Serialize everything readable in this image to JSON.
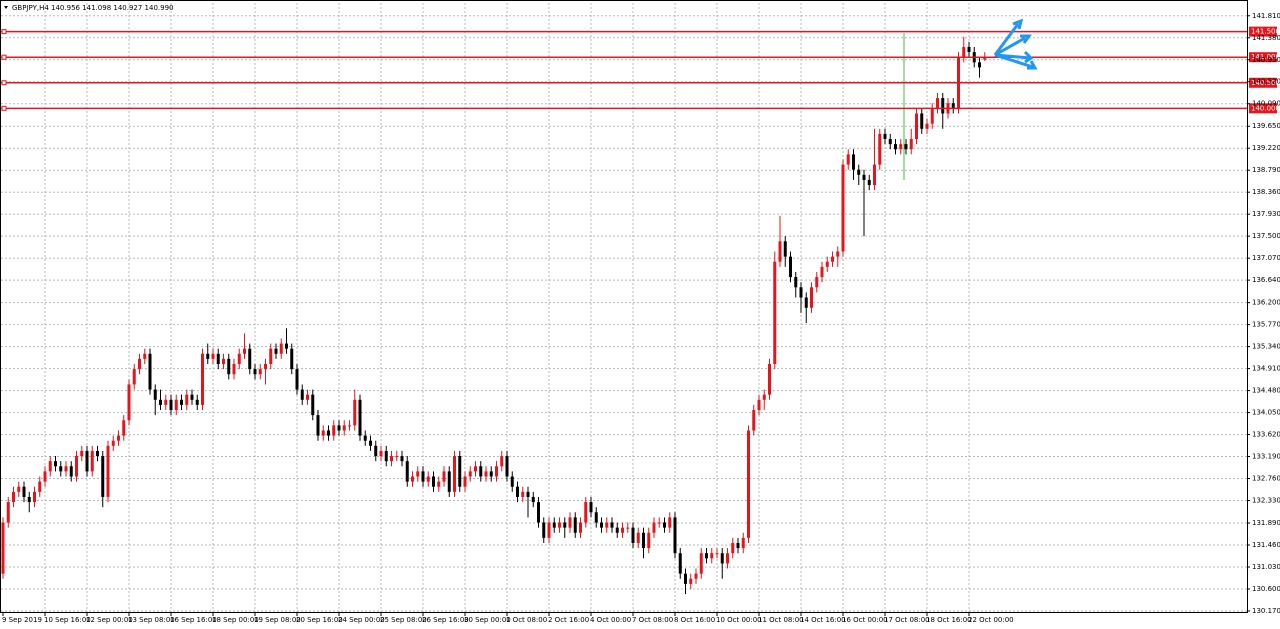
{
  "chart_data": {
    "type": "candlestick",
    "title": "GBPJPY,H4  140.956 141.098 140.927 140.990",
    "up_color": "#e8141b",
    "down_color": "#000000",
    "grid": true,
    "ylim": [
      130.15,
      142.06
    ],
    "yticks": [
      {
        "value": 141.81,
        "label": "141.810"
      },
      {
        "value": 141.38,
        "label": "141.380"
      },
      {
        "value": 140.95,
        "label": "140.950"
      },
      {
        "value": 140.52,
        "label": "140.520"
      },
      {
        "value": 140.09,
        "label": "140.090"
      },
      {
        "value": 139.65,
        "label": "139.650"
      },
      {
        "value": 139.22,
        "label": "139.220"
      },
      {
        "value": 138.79,
        "label": "138.790"
      },
      {
        "value": 138.36,
        "label": "138.360"
      },
      {
        "value": 137.93,
        "label": "137.930"
      },
      {
        "value": 137.5,
        "label": "137.500"
      },
      {
        "value": 137.07,
        "label": "137.070"
      },
      {
        "value": 136.64,
        "label": "136.640"
      },
      {
        "value": 136.2,
        "label": "136.200"
      },
      {
        "value": 135.77,
        "label": "135.770"
      },
      {
        "value": 135.34,
        "label": "135.340"
      },
      {
        "value": 134.91,
        "label": "134.910"
      },
      {
        "value": 134.48,
        "label": "134.480"
      },
      {
        "value": 134.05,
        "label": "134.050"
      },
      {
        "value": 133.62,
        "label": "133.620"
      },
      {
        "value": 133.19,
        "label": "133.190"
      },
      {
        "value": 132.76,
        "label": "132.760"
      },
      {
        "value": 132.33,
        "label": "132.330"
      },
      {
        "value": 131.89,
        "label": "131.890"
      },
      {
        "value": 131.46,
        "label": "131.460"
      },
      {
        "value": 131.03,
        "label": "131.030"
      },
      {
        "value": 130.6,
        "label": "130.600"
      },
      {
        "value": 130.17,
        "label": "130.170"
      }
    ],
    "levels": [
      {
        "value": 141.5,
        "label": "141.500"
      },
      {
        "value": 141,
        "label": "141.000"
      },
      {
        "value": 140.5,
        "label": "140.500"
      },
      {
        "value": 140,
        "label": "140.000"
      }
    ],
    "categories": [
      "9 Sep 2019",
      null,
      null,
      null,
      null,
      null,
      null,
      null,
      "10 Sep 16:00",
      null,
      null,
      null,
      null,
      null,
      null,
      null,
      "12 Sep 00:00",
      null,
      null,
      null,
      null,
      null,
      null,
      null,
      "13 Sep 08:00",
      null,
      null,
      null,
      null,
      null,
      null,
      null,
      "16 Sep 16:00",
      null,
      null,
      null,
      null,
      null,
      null,
      null,
      "18 Sep 00:00",
      null,
      null,
      null,
      null,
      null,
      null,
      null,
      "19 Sep 08:00",
      null,
      null,
      null,
      null,
      null,
      null,
      null,
      "20 Sep 16:00",
      null,
      null,
      null,
      null,
      null,
      null,
      null,
      "24 Sep 00:00",
      null,
      null,
      null,
      null,
      null,
      null,
      null,
      "25 Sep 08:00",
      null,
      null,
      null,
      null,
      null,
      null,
      null,
      "26 Sep 16:00",
      null,
      null,
      null,
      null,
      null,
      null,
      null,
      "30 Sep 00:00",
      null,
      null,
      null,
      null,
      null,
      null,
      null,
      "1 Oct 08:00",
      null,
      null,
      null,
      null,
      null,
      null,
      null,
      "2 Oct 16:00",
      null,
      null,
      null,
      null,
      null,
      null,
      null,
      "4 Oct 00:00",
      null,
      null,
      null,
      null,
      null,
      null,
      null,
      "7 Oct 08:00",
      null,
      null,
      null,
      null,
      null,
      null,
      null,
      "8 Oct 16:00",
      null,
      null,
      null,
      null,
      null,
      null,
      null,
      "10 Oct 00:00",
      null,
      null,
      null,
      null,
      null,
      null,
      null,
      "11 Oct 08:00",
      null,
      null,
      null,
      null,
      null,
      null,
      null,
      "14 Oct 16:00",
      null,
      null,
      null,
      null,
      null,
      null,
      null,
      "16 Oct 00:00",
      null,
      null,
      null,
      null,
      null,
      null,
      null,
      "17 Oct 08:00",
      null,
      null,
      null,
      null,
      null,
      null,
      null,
      "18 Oct 16:00",
      null,
      null,
      null,
      null,
      null,
      null,
      null,
      "22 Oct 00:00",
      null,
      null,
      null
    ],
    "candles": [
      [
        130.9,
        132.0,
        130.8,
        131.9
      ],
      [
        131.9,
        132.4,
        131.8,
        132.3
      ],
      [
        132.3,
        132.6,
        132.2,
        132.5
      ],
      [
        132.5,
        132.7,
        132.4,
        132.6
      ],
      [
        132.6,
        132.7,
        132.3,
        132.4
      ],
      [
        132.4,
        132.5,
        132.1,
        132.3
      ],
      [
        132.3,
        132.6,
        132.2,
        132.5
      ],
      [
        132.5,
        132.8,
        132.4,
        132.7
      ],
      [
        132.7,
        133.0,
        132.6,
        132.9
      ],
      [
        132.9,
        133.2,
        132.8,
        133.1
      ],
      [
        133.1,
        133.2,
        132.9,
        133.0
      ],
      [
        133.0,
        133.1,
        132.8,
        132.9
      ],
      [
        132.9,
        133.1,
        132.8,
        133.0
      ],
      [
        133.0,
        133.1,
        132.7,
        132.8
      ],
      [
        132.8,
        133.3,
        132.7,
        133.2
      ],
      [
        133.2,
        133.4,
        133.1,
        133.3
      ],
      [
        133.3,
        133.4,
        132.8,
        132.9
      ],
      [
        132.9,
        133.4,
        132.8,
        133.3
      ],
      [
        133.3,
        133.4,
        133.1,
        133.2
      ],
      [
        133.2,
        133.3,
        132.2,
        132.4
      ],
      [
        132.4,
        133.5,
        132.3,
        133.4
      ],
      [
        133.4,
        133.6,
        133.3,
        133.5
      ],
      [
        133.5,
        133.7,
        133.4,
        133.6
      ],
      [
        133.6,
        134.0,
        133.5,
        133.9
      ],
      [
        133.9,
        134.7,
        133.8,
        134.6
      ],
      [
        134.6,
        135.0,
        134.5,
        134.9
      ],
      [
        134.9,
        135.2,
        134.8,
        135.1
      ],
      [
        135.1,
        135.3,
        135.0,
        135.2
      ],
      [
        135.2,
        135.3,
        134.4,
        134.5
      ],
      [
        134.5,
        134.6,
        134.0,
        134.3
      ],
      [
        134.3,
        134.5,
        134.1,
        134.2
      ],
      [
        134.2,
        134.4,
        134.1,
        134.3
      ],
      [
        134.3,
        134.4,
        134.0,
        134.1
      ],
      [
        134.1,
        134.4,
        134.0,
        134.3
      ],
      [
        134.3,
        134.4,
        134.1,
        134.2
      ],
      [
        134.2,
        134.5,
        134.1,
        134.4
      ],
      [
        134.4,
        134.5,
        134.2,
        134.3
      ],
      [
        134.3,
        134.4,
        134.1,
        134.2
      ],
      [
        134.2,
        135.3,
        134.1,
        135.2
      ],
      [
        135.2,
        135.4,
        135.0,
        135.1
      ],
      [
        135.1,
        135.3,
        135.0,
        135.2
      ],
      [
        135.2,
        135.3,
        134.9,
        135.0
      ],
      [
        135.0,
        135.2,
        134.9,
        135.1
      ],
      [
        135.1,
        135.2,
        134.7,
        134.8
      ],
      [
        134.8,
        135.1,
        134.7,
        135.0
      ],
      [
        135.0,
        135.3,
        134.9,
        135.2
      ],
      [
        135.2,
        135.6,
        135.1,
        135.3
      ],
      [
        135.3,
        135.4,
        134.8,
        134.9
      ],
      [
        134.9,
        135.0,
        134.7,
        134.8
      ],
      [
        134.8,
        135.0,
        134.7,
        134.9
      ],
      [
        134.9,
        135.1,
        134.6,
        135.0
      ],
      [
        135.0,
        135.4,
        134.9,
        135.3
      ],
      [
        135.3,
        135.4,
        135.1,
        135.2
      ],
      [
        135.2,
        135.5,
        135.1,
        135.4
      ],
      [
        135.4,
        135.7,
        135.2,
        135.3
      ],
      [
        135.3,
        135.4,
        134.8,
        134.9
      ],
      [
        134.9,
        135.0,
        134.4,
        134.5
      ],
      [
        134.5,
        134.6,
        134.2,
        134.3
      ],
      [
        134.3,
        134.5,
        134.2,
        134.4
      ],
      [
        134.4,
        134.5,
        133.9,
        134.0
      ],
      [
        134.0,
        134.1,
        133.5,
        133.6
      ],
      [
        133.6,
        133.8,
        133.5,
        133.7
      ],
      [
        133.7,
        133.8,
        133.5,
        133.6
      ],
      [
        133.6,
        133.9,
        133.5,
        133.8
      ],
      [
        133.8,
        133.9,
        133.6,
        133.7
      ],
      [
        133.7,
        133.9,
        133.6,
        133.8
      ],
      [
        133.8,
        133.9,
        133.7,
        133.8
      ],
      [
        133.8,
        134.5,
        133.7,
        134.3
      ],
      [
        134.3,
        134.4,
        133.5,
        133.6
      ],
      [
        133.6,
        133.7,
        133.4,
        133.5
      ],
      [
        133.5,
        133.6,
        133.3,
        133.4
      ],
      [
        133.4,
        133.5,
        133.1,
        133.2
      ],
      [
        133.2,
        133.4,
        133.1,
        133.3
      ],
      [
        133.3,
        133.4,
        133.0,
        133.1
      ],
      [
        133.1,
        133.3,
        133.0,
        133.2
      ],
      [
        133.2,
        133.3,
        133.1,
        133.2
      ],
      [
        133.2,
        133.3,
        133.0,
        133.1
      ],
      [
        133.1,
        133.2,
        132.6,
        132.7
      ],
      [
        132.7,
        132.9,
        132.6,
        132.8
      ],
      [
        132.8,
        133.0,
        132.7,
        132.9
      ],
      [
        132.9,
        133.0,
        132.6,
        132.7
      ],
      [
        132.7,
        132.9,
        132.6,
        132.8
      ],
      [
        132.8,
        132.9,
        132.5,
        132.6
      ],
      [
        132.6,
        132.8,
        132.5,
        132.7
      ],
      [
        132.7,
        133.0,
        132.6,
        132.9
      ],
      [
        132.9,
        133.0,
        132.4,
        132.5
      ],
      [
        132.5,
        133.3,
        132.4,
        133.2
      ],
      [
        133.2,
        133.3,
        132.5,
        132.6
      ],
      [
        132.6,
        132.9,
        132.5,
        132.8
      ],
      [
        132.8,
        133.0,
        132.7,
        132.9
      ],
      [
        132.9,
        133.1,
        132.8,
        133.0
      ],
      [
        133.0,
        133.1,
        132.7,
        132.8
      ],
      [
        132.8,
        133.0,
        132.7,
        132.9
      ],
      [
        132.9,
        133.0,
        132.7,
        132.8
      ],
      [
        132.8,
        133.1,
        132.7,
        133.0
      ],
      [
        133.0,
        133.3,
        132.9,
        133.2
      ],
      [
        133.2,
        133.3,
        132.7,
        132.8
      ],
      [
        132.8,
        132.9,
        132.5,
        132.6
      ],
      [
        132.6,
        132.7,
        132.3,
        132.4
      ],
      [
        132.4,
        132.6,
        132.3,
        132.5
      ],
      [
        132.5,
        132.6,
        132.0,
        132.4
      ],
      [
        132.4,
        132.5,
        132.2,
        132.3
      ],
      [
        132.3,
        132.4,
        131.8,
        131.9
      ],
      [
        131.9,
        132.0,
        131.5,
        131.6
      ],
      [
        131.6,
        132.0,
        131.5,
        131.9
      ],
      [
        131.9,
        132.0,
        131.7,
        131.8
      ],
      [
        131.8,
        132.0,
        131.7,
        131.9
      ],
      [
        131.9,
        132.0,
        131.6,
        131.8
      ],
      [
        131.8,
        132.1,
        131.7,
        132.0
      ],
      [
        132.0,
        132.1,
        131.6,
        131.7
      ],
      [
        131.7,
        132.0,
        131.6,
        131.9
      ],
      [
        131.9,
        132.4,
        131.8,
        132.3
      ],
      [
        132.3,
        132.4,
        132.0,
        132.1
      ],
      [
        132.1,
        132.2,
        131.8,
        131.9
      ],
      [
        131.9,
        132.0,
        131.7,
        131.8
      ],
      [
        131.8,
        132.0,
        131.7,
        131.9
      ],
      [
        131.9,
        132.0,
        131.7,
        131.8
      ],
      [
        131.8,
        131.9,
        131.6,
        131.7
      ],
      [
        131.7,
        131.9,
        131.6,
        131.8
      ],
      [
        131.8,
        131.9,
        131.7,
        131.8
      ],
      [
        131.8,
        131.9,
        131.4,
        131.5
      ],
      [
        131.5,
        131.8,
        131.4,
        131.7
      ],
      [
        131.7,
        131.8,
        131.2,
        131.4
      ],
      [
        131.4,
        131.8,
        131.3,
        131.7
      ],
      [
        131.7,
        132.0,
        131.6,
        131.9
      ],
      [
        131.9,
        132.0,
        131.8,
        131.9
      ],
      [
        131.9,
        132.0,
        131.7,
        131.8
      ],
      [
        131.8,
        132.1,
        131.7,
        132.0
      ],
      [
        132.0,
        132.1,
        131.2,
        131.3
      ],
      [
        131.3,
        131.4,
        130.8,
        130.9
      ],
      [
        130.9,
        131.0,
        130.5,
        130.7
      ],
      [
        130.7,
        130.9,
        130.6,
        130.8
      ],
      [
        130.8,
        131.0,
        130.7,
        130.9
      ],
      [
        130.9,
        131.4,
        130.8,
        131.3
      ],
      [
        131.3,
        131.4,
        131.1,
        131.2
      ],
      [
        131.2,
        131.4,
        131.1,
        131.3
      ],
      [
        131.3,
        131.4,
        131.2,
        131.3
      ],
      [
        131.3,
        131.4,
        130.8,
        131.1
      ],
      [
        131.1,
        131.4,
        131.0,
        131.3
      ],
      [
        131.3,
        131.6,
        131.2,
        131.5
      ],
      [
        131.5,
        131.6,
        131.3,
        131.4
      ],
      [
        131.4,
        131.7,
        131.3,
        131.6
      ],
      [
        131.6,
        133.8,
        131.5,
        133.7
      ],
      [
        133.7,
        134.2,
        133.6,
        134.1
      ],
      [
        134.1,
        134.4,
        134.0,
        134.3
      ],
      [
        134.3,
        134.5,
        134.1,
        134.4
      ],
      [
        134.4,
        135.1,
        134.3,
        135.0
      ],
      [
        135.0,
        137.2,
        134.9,
        137.0
      ],
      [
        137.0,
        137.9,
        136.9,
        137.4
      ],
      [
        137.4,
        137.5,
        136.9,
        137.1
      ],
      [
        137.1,
        137.2,
        136.6,
        136.7
      ],
      [
        136.7,
        136.8,
        136.3,
        136.5
      ],
      [
        136.5,
        136.6,
        136.0,
        136.3
      ],
      [
        136.3,
        136.4,
        135.8,
        136.1
      ],
      [
        136.1,
        136.6,
        136.0,
        136.5
      ],
      [
        136.5,
        136.8,
        136.4,
        136.7
      ],
      [
        136.7,
        137.0,
        136.6,
        136.9
      ],
      [
        136.9,
        137.1,
        136.8,
        137.0
      ],
      [
        137.0,
        137.2,
        136.9,
        137.1
      ],
      [
        137.1,
        137.3,
        136.9,
        137.2
      ],
      [
        137.2,
        139.0,
        137.1,
        138.9
      ],
      [
        138.9,
        139.2,
        138.8,
        139.1
      ],
      [
        139.1,
        139.2,
        138.6,
        138.8
      ],
      [
        138.8,
        138.9,
        138.5,
        138.7
      ],
      [
        138.7,
        138.8,
        137.5,
        138.6
      ],
      [
        138.6,
        138.7,
        138.4,
        138.5
      ],
      [
        138.5,
        139.6,
        138.4,
        138.9
      ],
      [
        138.9,
        139.6,
        138.8,
        139.5
      ],
      [
        139.5,
        139.6,
        139.3,
        139.4
      ],
      [
        139.4,
        139.5,
        139.2,
        139.3
      ],
      [
        139.3,
        139.4,
        139.1,
        139.2
      ],
      [
        139.2,
        139.4,
        139.1,
        139.3
      ],
      [
        139.3,
        139.4,
        139.1,
        139.2
      ],
      [
        139.2,
        139.6,
        139.1,
        139.4
      ],
      [
        139.4,
        140.0,
        139.3,
        139.9
      ],
      [
        139.9,
        140.0,
        139.5,
        139.6
      ],
      [
        139.6,
        139.8,
        139.5,
        139.7
      ],
      [
        139.7,
        140.1,
        139.6,
        140.0
      ],
      [
        140.0,
        140.3,
        139.9,
        140.2
      ],
      [
        140.2,
        140.3,
        139.6,
        139.9
      ],
      [
        139.9,
        140.2,
        139.8,
        140.1
      ],
      [
        140.1,
        140.2,
        139.9,
        140.0
      ],
      [
        140.0,
        141.1,
        139.9,
        141.0
      ],
      [
        141.0,
        141.4,
        140.9,
        141.2
      ],
      [
        141.2,
        141.3,
        141.0,
        141.1
      ],
      [
        141.1,
        141.2,
        140.8,
        140.9
      ],
      [
        140.9,
        141.0,
        140.6,
        140.8
      ],
      [
        140.956,
        141.098,
        140.927,
        140.99
      ]
    ]
  }
}
